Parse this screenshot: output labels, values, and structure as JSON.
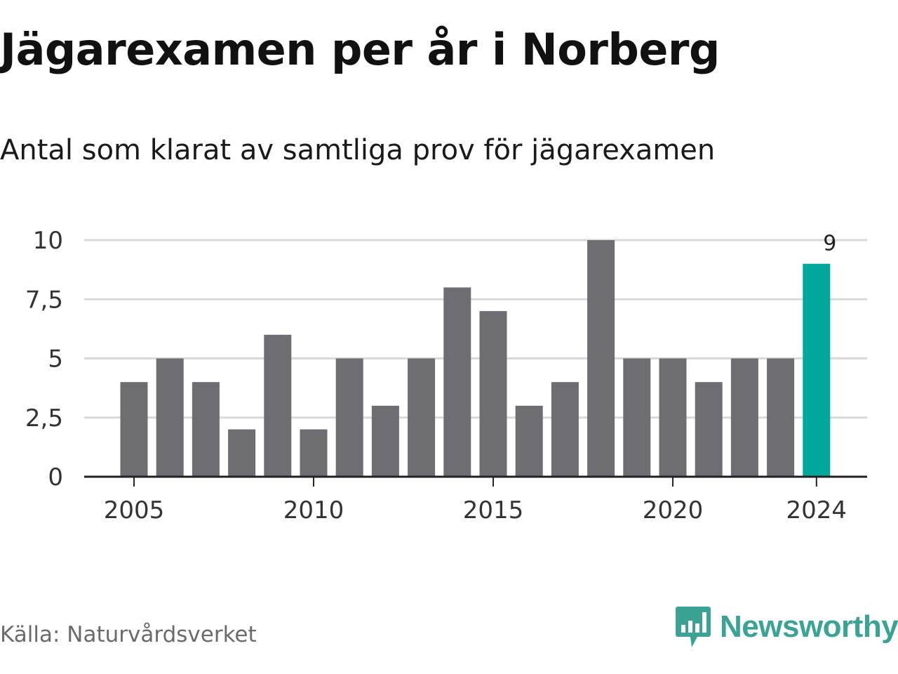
{
  "header": {
    "title": "Jägarexamen per år i Norberg",
    "subtitle": "Antal som klarat av samtliga prov för jägarexamen"
  },
  "footer": {
    "source": "Källa: Naturvårdsverket",
    "brand": "Newsworthy",
    "brand_icon": "bar-chart-speech-bubble-icon"
  },
  "colors": {
    "bar": "#6e6d72",
    "highlight": "#00a79b",
    "grid": "#d9d9d9",
    "axis": "#222222",
    "brand": "#3aa394"
  },
  "chart_data": {
    "type": "bar",
    "categories": [
      "2005",
      "2006",
      "2007",
      "2008",
      "2009",
      "2010",
      "2011",
      "2012",
      "2013",
      "2014",
      "2015",
      "2016",
      "2017",
      "2018",
      "2019",
      "2020",
      "2021",
      "2022",
      "2023",
      "2024"
    ],
    "values": [
      4,
      5,
      4,
      2,
      6,
      2,
      5,
      3,
      5,
      8,
      7,
      3,
      4,
      10,
      5,
      5,
      4,
      5,
      5,
      9
    ],
    "highlight_category": "2024",
    "highlight_label": "9",
    "x_tick_labels": [
      "2005",
      "2010",
      "2015",
      "2020",
      "2024"
    ],
    "y_ticks": [
      0,
      2.5,
      5,
      7.5,
      10
    ],
    "y_tick_labels": [
      "0",
      "2,5",
      "5",
      "7,5",
      "10"
    ],
    "ylim": [
      0,
      10
    ],
    "grid": true,
    "xlabel": "",
    "ylabel": ""
  }
}
